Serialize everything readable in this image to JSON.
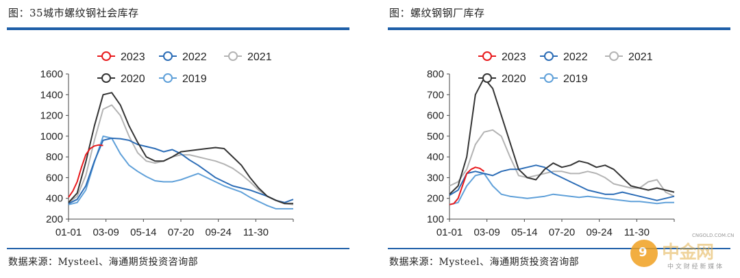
{
  "colors": {
    "2023": "#e8191c",
    "2022": "#2b6cb6",
    "2021": "#b3b3b3",
    "2020": "#333333",
    "2019": "#5fa0d9"
  },
  "watermark": {
    "logo_icon": "cngold-logo-icon",
    "text": "中金网",
    "site": "CNGOLD.COM.CN",
    "sub": "中 文 财 经 新 媒 体"
  },
  "charts": [
    {
      "title": "图：35城市螺纹钢社会库存",
      "source": "数据来源：Mysteel、海通期货投资咨询部",
      "chart_data": {
        "type": "line",
        "title": "",
        "xlabel": "",
        "ylabel": "",
        "x_ticks": [
          "01-01",
          "03-09",
          "05-14",
          "07-20",
          "09-24",
          "11-30"
        ],
        "ylim": [
          200,
          1600
        ],
        "y_ticks": [
          200,
          400,
          600,
          800,
          1000,
          1200,
          1400,
          1600
        ],
        "grid": false,
        "legend": "top",
        "x_range": [
          0,
          52
        ],
        "series": [
          {
            "name": "2023",
            "x": [
              0,
              1,
              2,
              3,
              4,
              5,
              6,
              7,
              8
            ],
            "values": [
              410,
              470,
              560,
              700,
              820,
              880,
              905,
              915,
              910
            ]
          },
          {
            "name": "2022",
            "x": [
              0,
              2,
              4,
              6,
              8,
              10,
              12,
              14,
              16,
              18,
              20,
              22,
              24,
              26,
              28,
              30,
              32,
              34,
              36,
              38,
              40,
              42,
              44,
              46,
              48,
              50,
              52
            ],
            "values": [
              350,
              390,
              520,
              760,
              960,
              980,
              975,
              960,
              920,
              900,
              880,
              850,
              870,
              830,
              770,
              720,
              660,
              600,
              560,
              520,
              500,
              480,
              450,
              420,
              380,
              360,
              390
            ]
          },
          {
            "name": "2021",
            "x": [
              0,
              2,
              4,
              6,
              8,
              10,
              12,
              14,
              16,
              18,
              20,
              22,
              24,
              26,
              28,
              30,
              32,
              34,
              36,
              38,
              40,
              42,
              44,
              46,
              48,
              50,
              52
            ],
            "values": [
              360,
              420,
              620,
              960,
              1260,
              1300,
              1200,
              1000,
              840,
              760,
              740,
              760,
              800,
              820,
              820,
              800,
              780,
              760,
              730,
              690,
              630,
              560,
              480,
              420,
              380,
              350,
              340
            ]
          },
          {
            "name": "2020",
            "x": [
              0,
              2,
              4,
              6,
              8,
              10,
              12,
              14,
              16,
              18,
              20,
              22,
              24,
              26,
              28,
              30,
              32,
              34,
              36,
              38,
              40,
              42,
              44,
              46,
              48,
              50,
              52
            ],
            "values": [
              360,
              450,
              750,
              1100,
              1400,
              1420,
              1300,
              1100,
              940,
              800,
              760,
              760,
              800,
              850,
              860,
              870,
              880,
              890,
              880,
              800,
              720,
              600,
              500,
              420,
              380,
              350,
              350
            ]
          },
          {
            "name": "2019",
            "x": [
              0,
              2,
              4,
              6,
              8,
              10,
              12,
              14,
              16,
              18,
              20,
              22,
              24,
              26,
              28,
              30,
              32,
              34,
              36,
              38,
              40,
              42,
              44,
              46,
              48,
              50,
              52
            ],
            "values": [
              340,
              360,
              480,
              750,
              1000,
              980,
              830,
              720,
              660,
              610,
              570,
              560,
              560,
              580,
              610,
              640,
              600,
              560,
              520,
              490,
              460,
              410,
              370,
              330,
              300,
              300,
              300
            ]
          }
        ]
      }
    },
    {
      "title": "图：螺纹钢钢厂库存",
      "source": "数据来源：Mysteel、海通期货投资咨询部",
      "chart_data": {
        "type": "line",
        "title": "",
        "xlabel": "",
        "ylabel": "",
        "x_ticks": [
          "01-01",
          "03-09",
          "05-14",
          "07-20",
          "09-24",
          "11-30"
        ],
        "ylim": [
          100,
          800
        ],
        "y_ticks": [
          100,
          200,
          300,
          400,
          500,
          600,
          700,
          800
        ],
        "grid": false,
        "legend": "top",
        "x_range": [
          0,
          52
        ],
        "series": [
          {
            "name": "2023",
            "x": [
              0,
              1,
              2,
              3,
              4,
              5,
              6,
              7,
              8
            ],
            "values": [
              170,
              175,
              200,
              260,
              320,
              340,
              350,
              345,
              330
            ]
          },
          {
            "name": "2022",
            "x": [
              0,
              2,
              4,
              6,
              8,
              10,
              12,
              14,
              16,
              18,
              20,
              22,
              24,
              26,
              28,
              30,
              32,
              34,
              36,
              38,
              40,
              42,
              44,
              46,
              48,
              50,
              52
            ],
            "values": [
              215,
              240,
              320,
              330,
              320,
              310,
              330,
              340,
              340,
              350,
              360,
              350,
              320,
              300,
              280,
              260,
              240,
              230,
              220,
              220,
              230,
              220,
              210,
              200,
              190,
              200,
              210
            ]
          },
          {
            "name": "2021",
            "x": [
              0,
              2,
              4,
              6,
              8,
              10,
              12,
              14,
              16,
              18,
              20,
              22,
              24,
              26,
              28,
              30,
              32,
              34,
              36,
              38,
              40,
              42,
              44,
              46,
              48,
              50,
              52
            ],
            "values": [
              260,
              280,
              340,
              460,
              520,
              530,
              500,
              400,
              310,
              300,
              310,
              320,
              330,
              330,
              320,
              320,
              330,
              320,
              300,
              270,
              260,
              250,
              250,
              280,
              290,
              230,
              210
            ]
          },
          {
            "name": "2020",
            "x": [
              0,
              2,
              4,
              6,
              8,
              10,
              12,
              14,
              16,
              18,
              20,
              22,
              24,
              26,
              28,
              30,
              32,
              34,
              36,
              38,
              40,
              42,
              44,
              46,
              48,
              50,
              52
            ],
            "values": [
              220,
              260,
              400,
              700,
              780,
              730,
              600,
              470,
              340,
              300,
              290,
              340,
              370,
              350,
              360,
              380,
              370,
              350,
              360,
              340,
              300,
              260,
              250,
              240,
              250,
              240,
              230
            ]
          },
          {
            "name": "2019",
            "x": [
              0,
              2,
              4,
              6,
              8,
              10,
              12,
              14,
              16,
              18,
              20,
              22,
              24,
              26,
              28,
              30,
              32,
              34,
              36,
              38,
              40,
              42,
              44,
              46,
              48,
              50,
              52
            ],
            "values": [
              170,
              180,
              260,
              310,
              320,
              260,
              220,
              210,
              205,
              200,
              205,
              210,
              220,
              215,
              210,
              205,
              210,
              205,
              200,
              195,
              190,
              185,
              185,
              180,
              175,
              180,
              180
            ]
          }
        ]
      }
    }
  ]
}
